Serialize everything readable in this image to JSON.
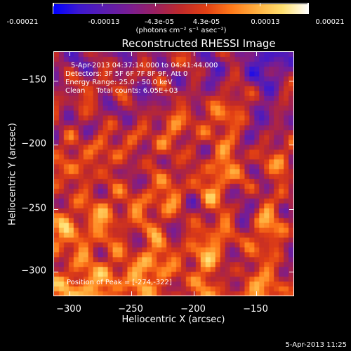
{
  "colorbar": {
    "tick_labels": [
      "-0.00021",
      "-0.00013",
      "-4.3e-05",
      "4.3e-05",
      "0.00013",
      "0.00021"
    ],
    "tick_values": [
      -0.00021,
      -0.00013,
      -4.3e-05,
      4.3e-05,
      0.00013,
      0.00021
    ],
    "range": [
      -0.00021,
      0.00021
    ],
    "unit_label": "(photons cm⁻² s⁻¹ asec⁻²)",
    "colormap": [
      "#0000ff",
      "#3d18d0",
      "#5a1db0",
      "#7a1d92",
      "#9a2060",
      "#c02a2a",
      "#e24014",
      "#ff7a1a",
      "#ffb040",
      "#ffe070",
      "#ffffff"
    ]
  },
  "title": "Reconstructed RHESSI Image",
  "annotations": {
    "time_range": "5-Apr-2013 04:37:14.000 to 04:41:44.000",
    "detectors": "Detectors: 3F 5F 6F 7F 8F 9F, Att 0",
    "energy_range": "Energy Range: 25.0 - 50.0 keV",
    "method_counts": "Clean     Total counts: 6.05E+03",
    "peak": "Position of Peak = [-274,-322]"
  },
  "chart_data": {
    "type": "heatmap",
    "title": "Reconstructed RHESSI Image",
    "xlabel": "Heliocentric X (arcsec)",
    "ylabel": "Heliocentric Y (arcsec)",
    "xlim": [
      -312,
      -118
    ],
    "ylim": [
      -320,
      -130
    ],
    "xticks": [
      -300,
      -250,
      -200,
      -150
    ],
    "yticks": [
      -150,
      -200,
      -250,
      -300
    ],
    "xtick_labels": [
      "−300",
      "−250",
      "−200",
      "−150"
    ],
    "ytick_labels": [
      "−150",
      "−200",
      "−250",
      "−300"
    ],
    "peak_position": [
      -274,
      -322
    ],
    "value_range": [
      -0.00021,
      0.00021
    ]
  },
  "footer_timestamp": "5-Apr-2013 11:25"
}
